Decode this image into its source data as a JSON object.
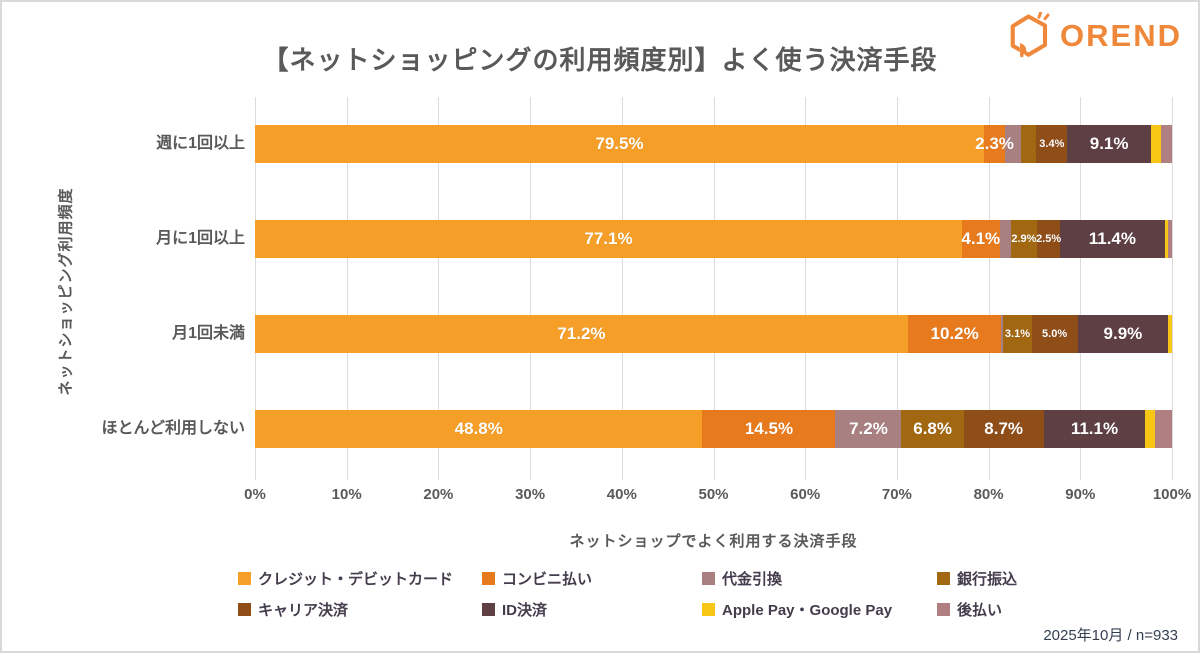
{
  "header": {
    "logo_text": "OREND"
  },
  "chart_data": {
    "type": "bar",
    "orientation": "horizontal",
    "stacked": true,
    "title": "【ネットショッピングの利用頻度別】よく使う決済手段",
    "xlabel": "ネットショップでよく利用する決済手段",
    "ylabel": "ネットショッピング利用頻度",
    "xlim": [
      0,
      100
    ],
    "grid": true,
    "x_ticks": [
      "0%",
      "10%",
      "20%",
      "30%",
      "40%",
      "50%",
      "60%",
      "70%",
      "80%",
      "90%",
      "100%"
    ],
    "categories": [
      "週に1回以上",
      "月に1回以上",
      "月1回未満",
      "ほとんど利用しない"
    ],
    "series": [
      {
        "name": "クレジット・デビットカード",
        "color": "#f59e28",
        "values": [
          79.5,
          77.1,
          71.2,
          48.8
        ]
      },
      {
        "name": "コンビニ払い",
        "color": "#e87a1e",
        "values": [
          2.3,
          4.1,
          10.2,
          14.5
        ]
      },
      {
        "name": "代金引換",
        "color": "#a98082",
        "values": [
          1.7,
          1.2,
          0.2,
          7.2
        ]
      },
      {
        "name": "銀行振込",
        "color": "#a26711",
        "values": [
          1.7,
          2.9,
          3.1,
          6.8
        ]
      },
      {
        "name": "キャリア決済",
        "color": "#8f4d18",
        "values": [
          3.4,
          2.5,
          5.0,
          8.7
        ]
      },
      {
        "name": "ID決済",
        "color": "#5e3f43",
        "values": [
          9.1,
          11.4,
          9.9,
          11.1
        ]
      },
      {
        "name": "Apple Pay・Google Pay",
        "color": "#f8c715",
        "values": [
          1.1,
          0.4,
          0.4,
          1.1
        ]
      },
      {
        "name": "後払い",
        "color": "#af7f81",
        "values": [
          1.2,
          0.4,
          0.0,
          1.8
        ]
      }
    ],
    "bar_labels": [
      [
        "79.5%",
        "2.3%",
        "",
        "",
        "3.4%",
        "9.1%",
        "",
        ""
      ],
      [
        "77.1%",
        "4.1%",
        "",
        "2.9%",
        "2.5%",
        "11.4%",
        "",
        ""
      ],
      [
        "71.2%",
        "10.2%",
        "",
        "3.1%",
        "5.0%",
        "9.9%",
        "",
        ""
      ],
      [
        "48.8%",
        "14.5%",
        "7.2%",
        "6.8%",
        "8.7%",
        "11.1%",
        "",
        ""
      ]
    ],
    "small_label_flags": [
      [
        false,
        false,
        false,
        false,
        true,
        false,
        false,
        false
      ],
      [
        false,
        false,
        false,
        true,
        true,
        false,
        false,
        false
      ],
      [
        false,
        false,
        false,
        true,
        true,
        false,
        false,
        false
      ],
      [
        false,
        false,
        false,
        false,
        false,
        false,
        false,
        false
      ]
    ],
    "legend_position": "bottom"
  },
  "footer": {
    "source_note": "2025年10月 / n=933"
  },
  "colors": {
    "accent_orange": "#f0883b",
    "text_gray": "#595959",
    "legend_text": "#443c4c",
    "gridline": "#dcdcdc",
    "footer_text": "#333f50"
  }
}
